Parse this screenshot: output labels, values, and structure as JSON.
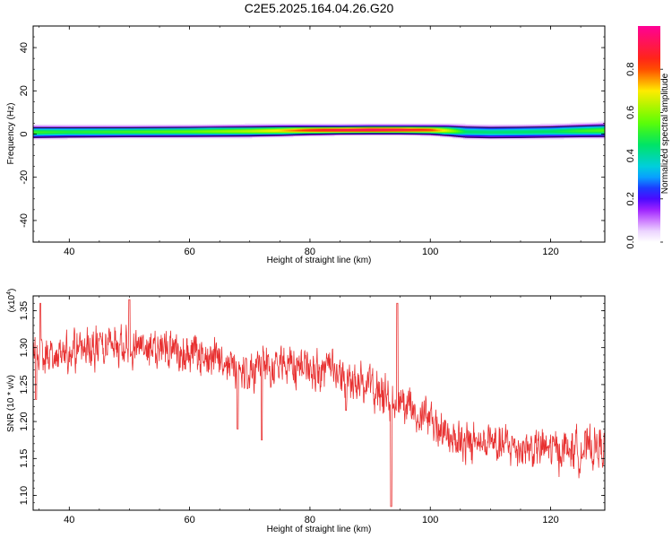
{
  "title": "C2E5.2025.164.04.26.G20",
  "chart_data": [
    {
      "type": "heatmap",
      "xlabel": "Height of straight line (km)",
      "ylabel": "Frequency (Hz)",
      "xlim": [
        34,
        129
      ],
      "ylim": [
        -50,
        50
      ],
      "xticks": [
        40,
        60,
        80,
        100,
        120
      ],
      "yticks": [
        -40,
        -20,
        0,
        20,
        40
      ],
      "ytick_labels": [
        "-40",
        "-20",
        "0",
        "20",
        "40"
      ],
      "colorbar": {
        "label": "Normalized spectral amplitude",
        "range": [
          0,
          1
        ],
        "ticks": [
          0.0,
          0.2,
          0.4,
          0.6,
          0.8
        ],
        "tick_labels": [
          "0.0",
          "0.2",
          "0.4",
          "0.6",
          "0.8"
        ]
      },
      "band": {
        "height_km": [
          34,
          40,
          50,
          60,
          70,
          75,
          80,
          85,
          90,
          95,
          100,
          103,
          106,
          110,
          115,
          120,
          125,
          129
        ],
        "peak_amplitude": [
          0.52,
          0.5,
          0.53,
          0.56,
          0.64,
          0.72,
          0.86,
          0.93,
          0.96,
          0.93,
          0.84,
          0.66,
          0.45,
          0.44,
          0.45,
          0.46,
          0.52,
          0.55
        ],
        "center_hz": [
          0.8,
          0.9,
          1.0,
          1.1,
          1.3,
          1.5,
          1.7,
          1.8,
          1.9,
          1.9,
          1.8,
          1.5,
          1.0,
          0.8,
          0.9,
          1.1,
          1.4,
          1.6
        ],
        "half_width_hz": [
          2.2,
          2.1,
          2.0,
          2.0,
          2.0,
          1.9,
          1.7,
          1.6,
          1.6,
          1.6,
          1.7,
          2.0,
          2.3,
          2.3,
          2.3,
          2.3,
          2.4,
          2.5
        ]
      }
    },
    {
      "type": "line",
      "xlabel": "Height of straight line (km)",
      "ylabel": "SNR (10 * v/v)",
      "y_multiplier": "(x10",
      "y_multiplier_exp": "4",
      "y_multiplier_close": ")",
      "xlim": [
        34,
        129
      ],
      "ylim": [
        1.08,
        1.37
      ],
      "xticks": [
        40,
        60,
        80,
        100,
        120
      ],
      "yticks": [
        1.1,
        1.15,
        1.2,
        1.25,
        1.3,
        1.35
      ],
      "ytick_labels": [
        "1.10",
        "1.15",
        "1.20",
        "1.25",
        "1.30",
        "1.35"
      ],
      "series": [
        {
          "color": "#e83030",
          "trend": {
            "x": [
              34,
              40,
              45,
              50,
              55,
              60,
              65,
              70,
              75,
              80,
              85,
              90,
              93,
              95,
              98,
              100,
              105,
              110,
              115,
              120,
              125,
              129
            ],
            "y": [
              1.29,
              1.292,
              1.3,
              1.305,
              1.3,
              1.295,
              1.282,
              1.272,
              1.275,
              1.272,
              1.262,
              1.245,
              1.23,
              1.225,
              1.215,
              1.2,
              1.172,
              1.168,
              1.165,
              1.163,
              1.162,
              1.165
            ]
          },
          "noise_amplitude": 0.025,
          "features": [
            {
              "x": 34.5,
              "y": 1.23
            },
            {
              "x": 35.2,
              "y": 1.36
            },
            {
              "x": 50.0,
              "y": 1.365
            },
            {
              "x": 68.0,
              "y": 1.19
            },
            {
              "x": 72.0,
              "y": 1.175
            },
            {
              "x": 86.0,
              "y": 1.215
            },
            {
              "x": 93.5,
              "y": 1.085
            },
            {
              "x": 94.5,
              "y": 1.36
            }
          ]
        }
      ]
    }
  ]
}
